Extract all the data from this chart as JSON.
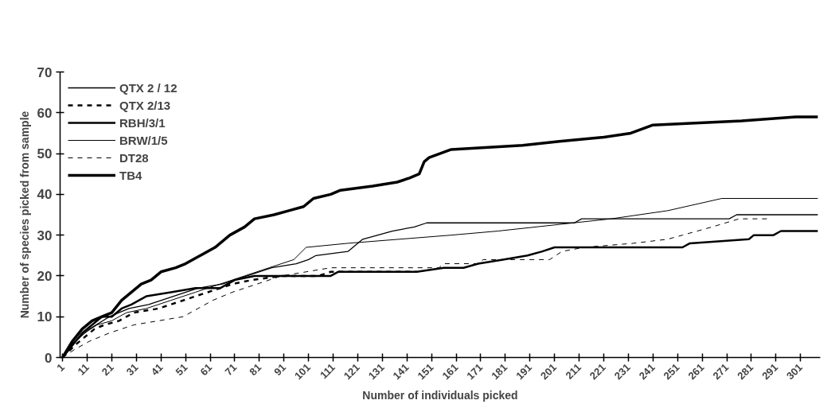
{
  "chart_data": {
    "type": "line",
    "xlabel": "Number of individuals picked",
    "ylabel": "Number of species picked from sample",
    "xlim": [
      0,
      309
    ],
    "xticks": [
      1,
      11,
      21,
      31,
      41,
      51,
      61,
      71,
      81,
      91,
      101,
      111,
      121,
      131,
      141,
      151,
      161,
      171,
      181,
      191,
      201,
      211,
      221,
      231,
      241,
      251,
      261,
      271,
      281,
      291,
      301
    ],
    "ylim": [
      0,
      70
    ],
    "yticks": [
      0,
      10,
      20,
      30,
      40,
      50,
      60,
      70
    ],
    "grid": false,
    "legend": "top left",
    "series": [
      {
        "name": "QTX 2 / 12",
        "color": "#000000",
        "line_style": "solid",
        "x": [
          1,
          6,
          12,
          20,
          28,
          36,
          46,
          56,
          66,
          76,
          86,
          96,
          101,
          104,
          117,
          123,
          135,
          144,
          149,
          209,
          212,
          272,
          275,
          308
        ],
        "values": [
          0,
          4,
          7,
          10,
          12,
          13,
          15,
          17,
          18,
          20,
          22,
          23,
          24,
          25,
          26,
          29,
          31,
          32,
          33,
          33,
          34,
          34,
          35,
          35
        ]
      },
      {
        "name": "QTX 2/13",
        "color": "#000000",
        "line_style": "dashed",
        "x": [
          1,
          6,
          10,
          14,
          18,
          24,
          30,
          40,
          50,
          60,
          70,
          78,
          90,
          105,
          110,
          145
        ],
        "values": [
          0,
          3,
          5,
          7,
          8,
          9,
          11,
          12,
          14,
          16,
          18,
          19,
          20,
          20,
          21,
          21
        ]
      },
      {
        "name": "RBH/3/1",
        "color": "#000000",
        "line_style": "solid",
        "x": [
          1,
          5,
          9,
          13,
          17,
          21,
          25,
          29,
          35,
          45,
          55,
          65,
          71,
          79,
          110,
          113,
          145,
          156,
          164,
          170,
          180,
          190,
          196,
          201,
          253,
          256,
          280,
          282,
          290,
          293,
          308
        ],
        "values": [
          0,
          3,
          6,
          8,
          10,
          10,
          12,
          13,
          15,
          16,
          17,
          17,
          19,
          20,
          20,
          21,
          21,
          22,
          22,
          23,
          24,
          25,
          26,
          27,
          27,
          28,
          29,
          30,
          30,
          31,
          31
        ]
      },
      {
        "name": "BRW/1/5",
        "color": "#000000",
        "line_style": "solid",
        "x": [
          1,
          5,
          10,
          15,
          21,
          27,
          35,
          45,
          55,
          65,
          75,
          85,
          95,
          100,
          117,
          138,
          159,
          178,
          224,
          247,
          269,
          308
        ],
        "values": [
          0,
          3,
          6,
          8,
          9,
          11,
          12,
          14,
          16,
          18,
          20,
          22,
          24,
          27,
          28,
          29,
          30,
          31,
          34,
          36,
          39,
          39
        ]
      },
      {
        "name": "DT28",
        "color": "#000000",
        "line_style": "dashed",
        "x": [
          1,
          6,
          12,
          20,
          30,
          40,
          50,
          56,
          62,
          70,
          80,
          90,
          100,
          110,
          154,
          156,
          170,
          172,
          199,
          204,
          213,
          233,
          247,
          253,
          265,
          276,
          288
        ],
        "values": [
          0,
          2,
          4,
          6,
          8,
          9,
          10,
          12,
          14,
          16,
          18,
          20,
          21,
          22,
          22,
          23,
          23,
          24,
          24,
          26,
          27,
          28,
          29,
          30,
          32,
          34,
          34
        ]
      },
      {
        "name": "TB4",
        "color": "#000000",
        "line_style": "solid",
        "x": [
          1,
          5,
          9,
          13,
          17,
          21,
          25,
          29,
          33,
          37,
          41,
          47,
          51,
          57,
          63,
          69,
          75,
          79,
          87,
          93,
          99,
          103,
          110,
          114,
          127,
          137,
          142,
          146,
          148,
          150,
          159,
          188,
          203,
          221,
          232,
          241,
          277,
          299,
          308
        ],
        "values": [
          0,
          4,
          7,
          9,
          10,
          11,
          14,
          16,
          18,
          19,
          21,
          22,
          23,
          25,
          27,
          30,
          32,
          34,
          35,
          36,
          37,
          39,
          40,
          41,
          42,
          43,
          44,
          45,
          48,
          49,
          51,
          52,
          53,
          54,
          55,
          57,
          58,
          59,
          59
        ]
      }
    ]
  }
}
